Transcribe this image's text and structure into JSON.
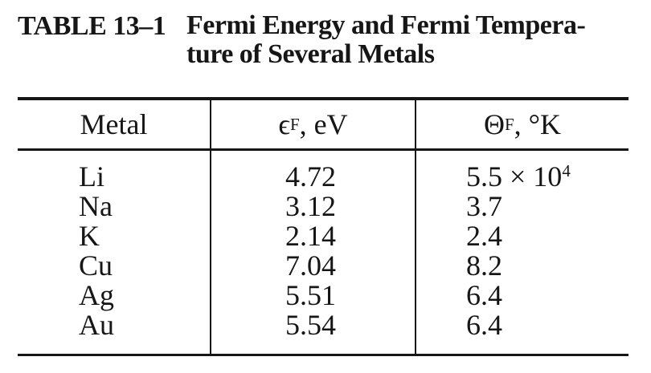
{
  "title": {
    "label": "TABLE 13–1",
    "line1": "Fermi Energy and Fermi Tempera-",
    "line2": "ture of Several Metals"
  },
  "table": {
    "headers": {
      "metal": "Metal",
      "epsilon": {
        "sym": "ϵ",
        "sub": "F",
        "rest": ", eV"
      },
      "theta": {
        "sym": "Θ",
        "sub": "F",
        "rest": ", °K"
      }
    },
    "rows": [
      {
        "metal": "Li",
        "epsilon": "4.72",
        "theta": "5.5 × 10",
        "theta_exp": "4"
      },
      {
        "metal": "Na",
        "epsilon": "3.12",
        "theta": "3.7",
        "theta_exp": ""
      },
      {
        "metal": "K",
        "epsilon": "2.14",
        "theta": "2.4",
        "theta_exp": ""
      },
      {
        "metal": "Cu",
        "epsilon": "7.04",
        "theta": "8.2",
        "theta_exp": ""
      },
      {
        "metal": "Ag",
        "epsilon": "5.51",
        "theta": "6.4",
        "theta_exp": ""
      },
      {
        "metal": "Au",
        "epsilon": "5.54",
        "theta": "6.4",
        "theta_exp": ""
      }
    ]
  },
  "colors": {
    "ink": "#161616",
    "paper": "#ffffff"
  }
}
